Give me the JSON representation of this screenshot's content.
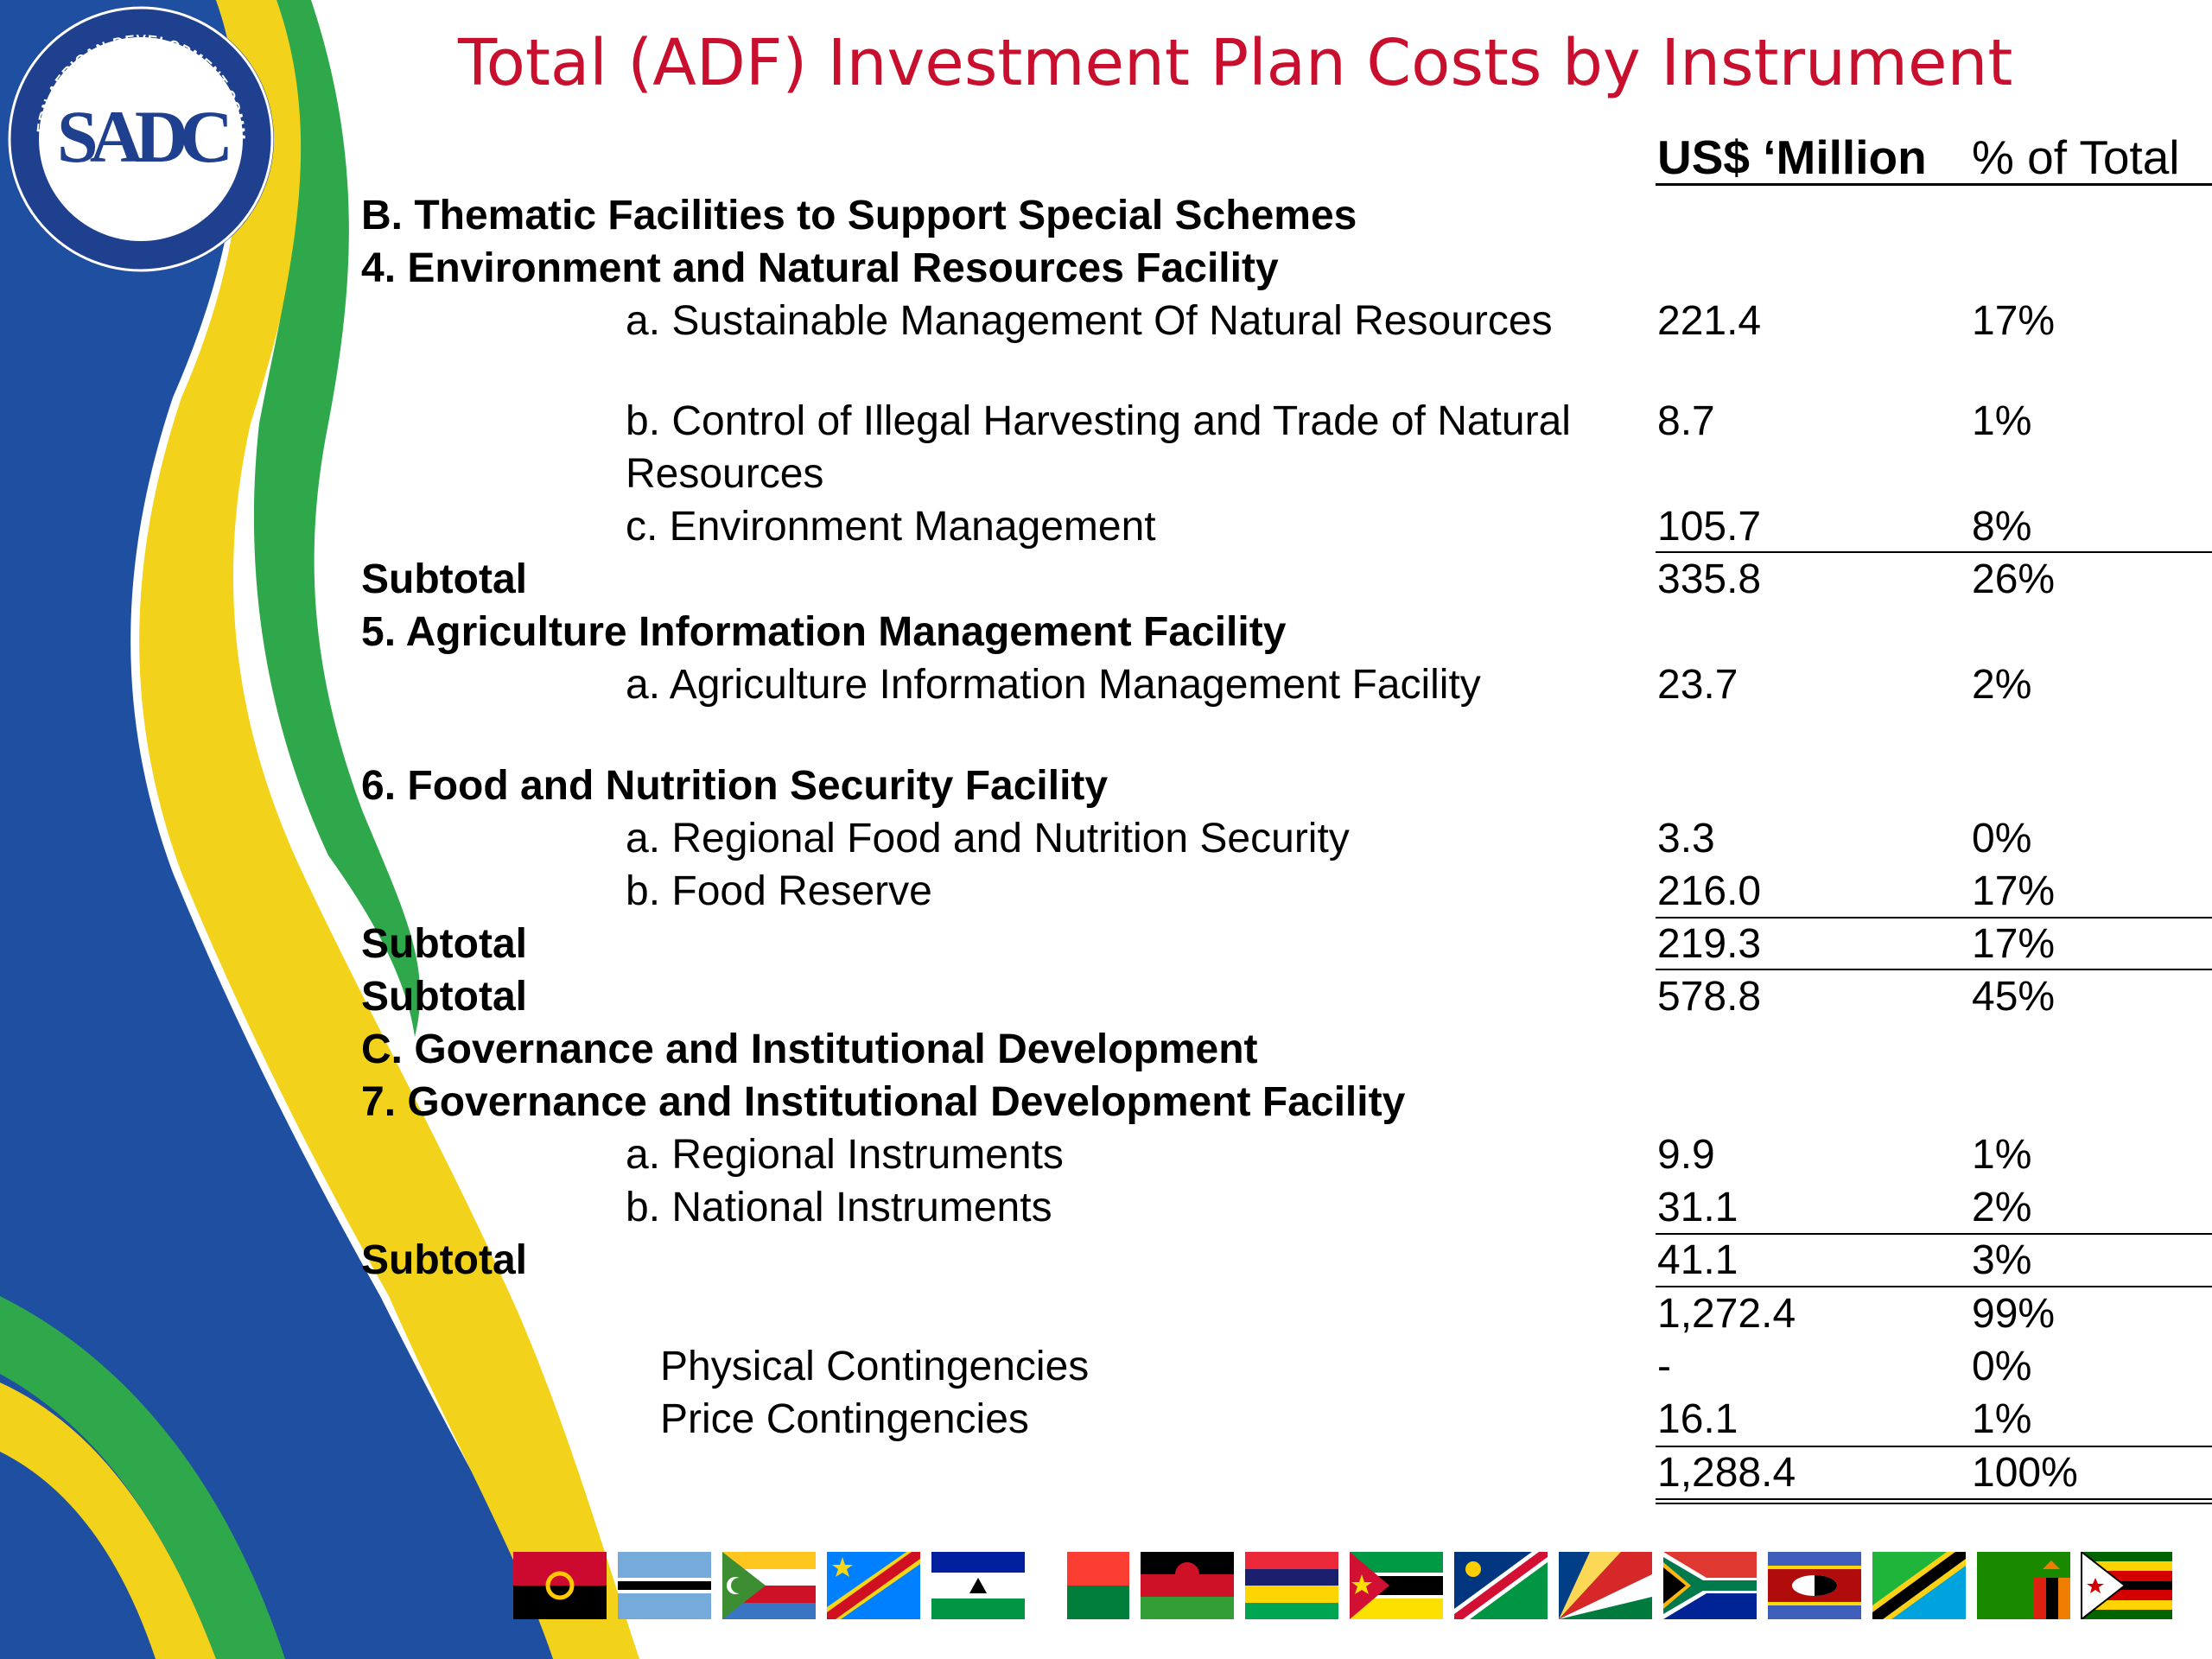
{
  "title": "Total (ADF) Investment Plan Costs by Instrument",
  "logo": {
    "text": "SADC",
    "ring_text": "SOUTHERN AFRICAN DEVELOPMENT COMMUNITY",
    "motto": "TOWARDS A COMMON FUTURE"
  },
  "columns": {
    "usd": "US$ ‘Million",
    "pct": "% of Total"
  },
  "rows": [
    {
      "label": "B. Thematic Facilities to Support Special Schemes",
      "usd": "",
      "pct": ""
    },
    {
      "label": "4. Environment and Natural Resources Facility",
      "usd": "",
      "pct": ""
    },
    {
      "label": "a. Sustainable Management Of Natural Resources",
      "usd": "221.4",
      "pct": "17%"
    },
    {
      "label": "b. Control of Illegal Harvesting and Trade of Natural",
      "label2": "Resources",
      "usd": "8.7",
      "pct": "1%"
    },
    {
      "label": "c. Environment Management",
      "usd": "105.7",
      "pct": "8%"
    },
    {
      "label": "Subtotal",
      "usd": "335.8",
      "pct": "26%"
    },
    {
      "label": "5. Agriculture Information Management Facility",
      "usd": "",
      "pct": ""
    },
    {
      "label": "a. Agriculture Information Management Facility",
      "usd": "23.7",
      "pct": "2%"
    },
    {
      "label": "6. Food and Nutrition Security Facility",
      "usd": "",
      "pct": ""
    },
    {
      "label": "a. Regional Food and Nutrition Security",
      "usd": "3.3",
      "pct": "0%"
    },
    {
      "label": "b. Food Reserve",
      "usd": "216.0",
      "pct": "17%"
    },
    {
      "label": "Subtotal",
      "usd": "219.3",
      "pct": "17%"
    },
    {
      "label": "Subtotal",
      "usd": "578.8",
      "pct": "45%"
    },
    {
      "label": "C. Governance and Institutional Development",
      "usd": "",
      "pct": ""
    },
    {
      "label": "7. Governance and Institutional Development Facility",
      "usd": "",
      "pct": ""
    },
    {
      "label": "a. Regional Instruments",
      "usd": "9.9",
      "pct": "1%"
    },
    {
      "label": "b. National Instruments",
      "usd": "31.1",
      "pct": "2%"
    },
    {
      "label": "Subtotal",
      "usd": "41.1",
      "pct": "3%"
    },
    {
      "label": "",
      "usd": "1,272.4",
      "pct": "99%"
    },
    {
      "label": "Physical Contingencies",
      "usd": "-",
      "pct": "0%"
    },
    {
      "label": "Price Contingencies",
      "usd": "16.1",
      "pct": "1%"
    },
    {
      "label": "",
      "usd": "1,288.4",
      "pct": "100%"
    }
  ],
  "colors": {
    "title": "#c8102e",
    "wave_blue": "#1e4fa0",
    "wave_yellow": "#f2d21b",
    "wave_green": "#2ea84a",
    "logo_navy": "#1f3f8f"
  },
  "flags": [
    "Angola",
    "Botswana",
    "Comoros",
    "DR Congo",
    "Lesotho",
    "Madagascar",
    "Malawi",
    "Mauritius",
    "Mozambique",
    "Namibia",
    "Seychelles",
    "South Africa",
    "Eswatini",
    "Tanzania",
    "Zambia",
    "Zimbabwe"
  ]
}
